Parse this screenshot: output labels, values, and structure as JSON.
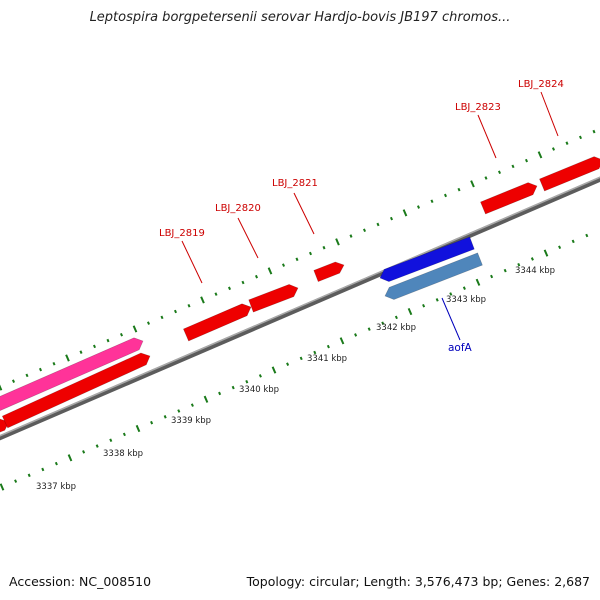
{
  "title": "Leptospira borgpetersenii serovar Hardjo-bovis JB197 chromos...",
  "footer": {
    "accession": "Accession: NC_008510",
    "summary": "Topology: circular; Length: 3,576,473 bp; Genes: 2,687"
  },
  "colors": {
    "forward_gene": "#ee0000",
    "rna_gene": "#ff3399",
    "reverse_gene_dark": "#1111dd",
    "reverse_gene_light": "#4f86bb",
    "backbone": "#808080",
    "tick": "#1a7a1a",
    "gene_label": "#cc0000",
    "blue_label": "#0000bb"
  },
  "scale_labels": [
    "3337 kbp",
    "3338 kbp",
    "3339 kbp",
    "3340 kbp",
    "3341 kbp",
    "3342 kbp",
    "3343 kbp",
    "3344 kbp"
  ],
  "gene_labels": [
    "LBJ_2819",
    "LBJ_2820",
    "LBJ_2821",
    "LBJ_2823",
    "LBJ_2824"
  ],
  "reverse_gene_label": "aofA"
}
